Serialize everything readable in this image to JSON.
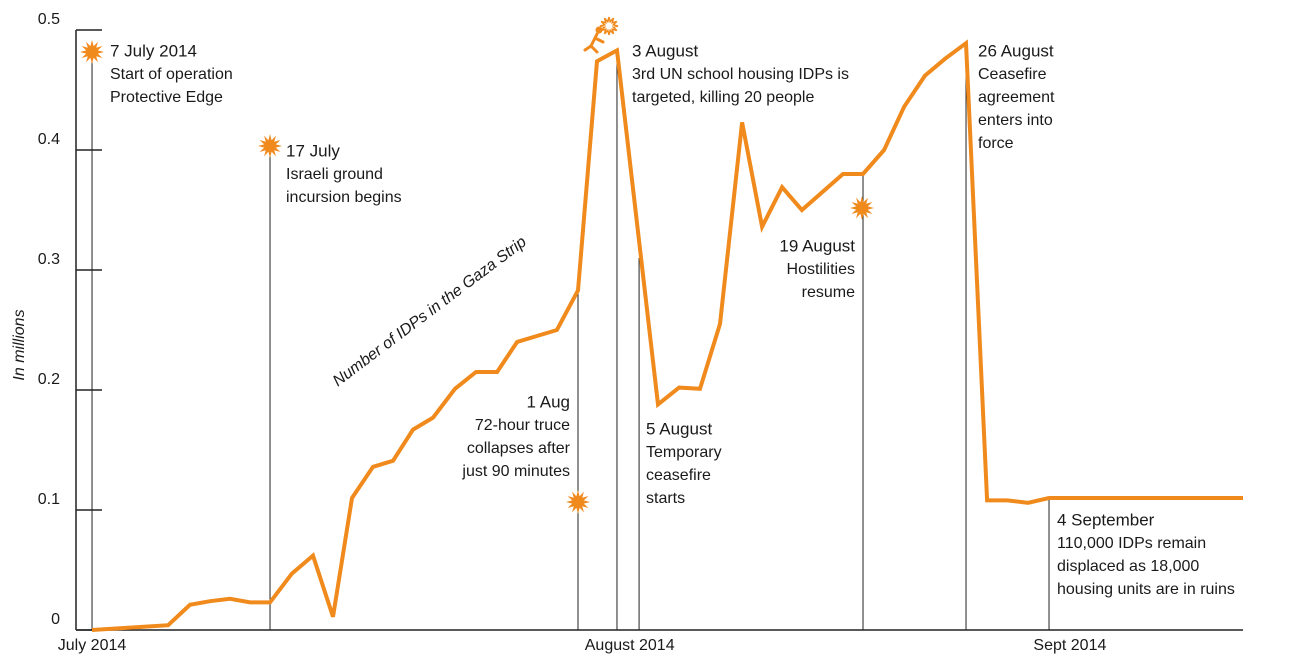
{
  "chart_data": {
    "type": "line",
    "ylabel": "In millions",
    "ylim": [
      0,
      0.5
    ],
    "yticks": [
      0,
      0.1,
      0.2,
      0.3,
      0.4,
      0.5
    ],
    "xlim": [
      -1.3,
      66.2
    ],
    "xticks": [
      {
        "value": 0,
        "label": "July 2014"
      },
      {
        "value": 30.9,
        "label": "August 2014"
      },
      {
        "value": 56.2,
        "label": "Sept 2014"
      }
    ],
    "series": [
      {
        "name": "Number of IDPs in the Gaza Strip",
        "color": "#f08a1c",
        "x": [
          0,
          2.18,
          4.37,
          5.63,
          6.78,
          7.93,
          9.08,
          10.23,
          11.49,
          12.7,
          13.85,
          14.94,
          16.15,
          17.3,
          18.45,
          19.6,
          20.86,
          22.07,
          23.28,
          24.43,
          26.72,
          27.93,
          29.02,
          30.17,
          32.53,
          33.74,
          34.94,
          36.09,
          37.36,
          38.51,
          39.66,
          40.8,
          43.16,
          44.31,
          45.52,
          46.67,
          47.87,
          49.02,
          50.23,
          51.44,
          52.59,
          53.79,
          55.0,
          66.15
        ],
        "values": [
          0,
          0.002,
          0.004,
          0.021,
          0.024,
          0.026,
          0.023,
          0.023,
          0.047,
          0.062,
          0.011,
          0.11,
          0.136,
          0.141,
          0.167,
          0.177,
          0.201,
          0.215,
          0.215,
          0.24,
          0.25,
          0.283,
          0.474,
          0.483,
          0.188,
          0.202,
          0.201,
          0.255,
          0.423,
          0.336,
          0.369,
          0.35,
          0.38,
          0.38,
          0.4,
          0.436,
          0.462,
          0.476,
          0.489,
          0.108,
          0.108,
          0.106,
          0.11,
          0.11
        ]
      }
    ],
    "annotations": [
      {
        "date": "7 July 2014",
        "text": [
          "Start of operation",
          "Protective Edge"
        ],
        "x": 0
      },
      {
        "date": "17 July",
        "text": [
          "Israeli ground",
          "incursion begins"
        ],
        "x": 10.23
      },
      {
        "date": "1 Aug",
        "text": [
          "72-hour truce",
          "collapses after",
          "just 90 minutes"
        ],
        "x": 27.93
      },
      {
        "date": "3 August",
        "text": [
          "3rd UN school housing IDPs is",
          "targeted, killing 20 people"
        ],
        "x": 30.17
      },
      {
        "date": "5 August",
        "text": [
          "Temporary",
          "ceasefire",
          "starts"
        ],
        "x": 31.44
      },
      {
        "date": "19 August",
        "text": [
          "Hostilities",
          "resume"
        ],
        "x": 44.31
      },
      {
        "date": "26 August",
        "text": [
          "Ceasefire",
          "agreement",
          "enters into",
          "force"
        ],
        "x": 50.23
      },
      {
        "date": "4 September",
        "text": [
          "110,000 IDPs remain",
          "displaced as 18,000",
          "housing units are in ruins"
        ],
        "x": 55.0
      }
    ]
  }
}
